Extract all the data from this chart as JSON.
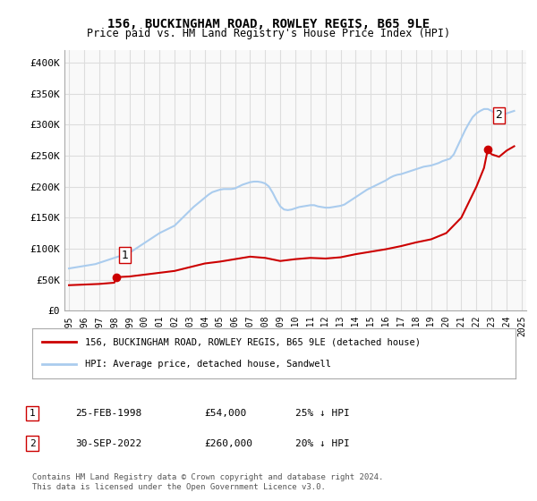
{
  "title": "156, BUCKINGHAM ROAD, ROWLEY REGIS, B65 9LE",
  "subtitle": "Price paid vs. HM Land Registry's House Price Index (HPI)",
  "ylim": [
    0,
    420000
  ],
  "yticks": [
    0,
    50000,
    100000,
    150000,
    200000,
    250000,
    300000,
    350000,
    400000
  ],
  "ytick_labels": [
    "£0",
    "£50K",
    "£100K",
    "£150K",
    "£200K",
    "£250K",
    "£300K",
    "£350K",
    "£400K"
  ],
  "background_color": "#ffffff",
  "plot_bg_color": "#f9f9f9",
  "grid_color": "#dddddd",
  "hpi_color": "#aaccee",
  "price_color": "#cc0000",
  "sale1_date": 1998.15,
  "sale1_price": 54000,
  "sale2_date": 2022.75,
  "sale2_price": 260000,
  "legend_label1": "156, BUCKINGHAM ROAD, ROWLEY REGIS, B65 9LE (detached house)",
  "legend_label2": "HPI: Average price, detached house, Sandwell",
  "annotation1_label": "1",
  "annotation2_label": "2",
  "table_row1": [
    "1",
    "25-FEB-1998",
    "£54,000",
    "25% ↓ HPI"
  ],
  "table_row2": [
    "2",
    "30-SEP-2022",
    "£260,000",
    "20% ↓ HPI"
  ],
  "footnote": "Contains HM Land Registry data © Crown copyright and database right 2024.\nThis data is licensed under the Open Government Licence v3.0.",
  "hpi_data_x": [
    1995,
    1995.25,
    1995.5,
    1995.75,
    1996,
    1996.25,
    1996.5,
    1996.75,
    1997,
    1997.25,
    1997.5,
    1997.75,
    1998,
    1998.25,
    1998.5,
    1998.75,
    1999,
    1999.25,
    1999.5,
    1999.75,
    2000,
    2000.25,
    2000.5,
    2000.75,
    2001,
    2001.25,
    2001.5,
    2001.75,
    2002,
    2002.25,
    2002.5,
    2002.75,
    2003,
    2003.25,
    2003.5,
    2003.75,
    2004,
    2004.25,
    2004.5,
    2004.75,
    2005,
    2005.25,
    2005.5,
    2005.75,
    2006,
    2006.25,
    2006.5,
    2006.75,
    2007,
    2007.25,
    2007.5,
    2007.75,
    2008,
    2008.25,
    2008.5,
    2008.75,
    2009,
    2009.25,
    2009.5,
    2009.75,
    2010,
    2010.25,
    2010.5,
    2010.75,
    2011,
    2011.25,
    2011.5,
    2011.75,
    2012,
    2012.25,
    2012.5,
    2012.75,
    2013,
    2013.25,
    2013.5,
    2013.75,
    2014,
    2014.25,
    2014.5,
    2014.75,
    2015,
    2015.25,
    2015.5,
    2015.75,
    2016,
    2016.25,
    2016.5,
    2016.75,
    2017,
    2017.25,
    2017.5,
    2017.75,
    2018,
    2018.25,
    2018.5,
    2018.75,
    2019,
    2019.25,
    2019.5,
    2019.75,
    2020,
    2020.25,
    2020.5,
    2020.75,
    2021,
    2021.25,
    2021.5,
    2021.75,
    2022,
    2022.25,
    2022.5,
    2022.75,
    2023,
    2023.25,
    2023.5,
    2023.75,
    2024,
    2024.25,
    2024.5
  ],
  "hpi_data_y": [
    68000,
    69000,
    70000,
    71000,
    72000,
    73000,
    74000,
    75000,
    77000,
    79000,
    81000,
    83000,
    85000,
    87000,
    89000,
    91000,
    93000,
    97000,
    101000,
    105000,
    109000,
    113000,
    117000,
    121000,
    125000,
    128000,
    131000,
    134000,
    137000,
    143000,
    149000,
    155000,
    161000,
    167000,
    172000,
    177000,
    182000,
    187000,
    191000,
    193000,
    195000,
    196000,
    196000,
    196000,
    197000,
    200000,
    203000,
    205000,
    207000,
    208000,
    208000,
    207000,
    205000,
    200000,
    190000,
    178000,
    168000,
    163000,
    162000,
    163000,
    165000,
    167000,
    168000,
    169000,
    170000,
    170000,
    168000,
    167000,
    166000,
    166000,
    167000,
    168000,
    169000,
    171000,
    175000,
    179000,
    183000,
    187000,
    191000,
    195000,
    198000,
    201000,
    204000,
    207000,
    210000,
    214000,
    217000,
    219000,
    220000,
    222000,
    224000,
    226000,
    228000,
    230000,
    232000,
    233000,
    234000,
    236000,
    238000,
    241000,
    243000,
    245000,
    252000,
    265000,
    278000,
    291000,
    302000,
    312000,
    318000,
    322000,
    325000,
    325000,
    322000,
    318000,
    315000,
    316000,
    318000,
    320000,
    322000
  ],
  "price_data_x": [
    1995,
    1996,
    1997,
    1997.5,
    1998,
    1998.15,
    1999,
    2000,
    2001,
    2002,
    2003,
    2004,
    2005,
    2006,
    2007,
    2008,
    2009,
    2010,
    2011,
    2012,
    2013,
    2014,
    2015,
    2016,
    2017,
    2018,
    2019,
    2020,
    2021,
    2021.5,
    2022,
    2022.5,
    2022.75,
    2023,
    2023.5,
    2024,
    2024.5
  ],
  "price_data_y": [
    41000,
    42000,
    43000,
    44000,
    45000,
    54000,
    55000,
    58000,
    61000,
    64000,
    70000,
    76000,
    79000,
    83000,
    87000,
    85000,
    80000,
    83000,
    85000,
    84000,
    86000,
    91000,
    95000,
    99000,
    104000,
    110000,
    115000,
    125000,
    150000,
    175000,
    200000,
    230000,
    260000,
    252000,
    248000,
    258000,
    265000
  ],
  "xtick_years": [
    1995,
    1996,
    1997,
    1998,
    1999,
    2000,
    2001,
    2002,
    2003,
    2004,
    2005,
    2006,
    2007,
    2008,
    2009,
    2010,
    2011,
    2012,
    2013,
    2014,
    2015,
    2016,
    2017,
    2018,
    2019,
    2020,
    2021,
    2022,
    2023,
    2024,
    2025
  ]
}
